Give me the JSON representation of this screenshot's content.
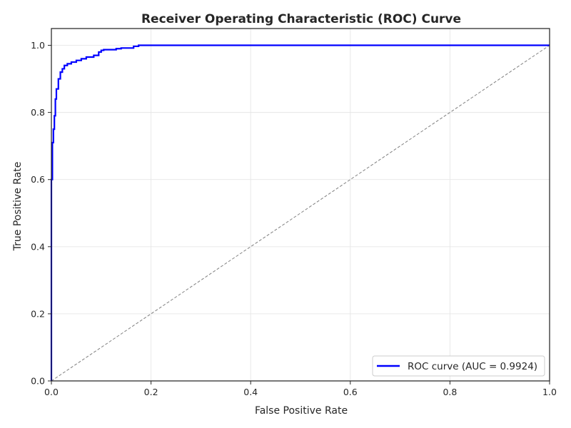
{
  "chart_data": {
    "type": "line",
    "title": "Receiver Operating Characteristic (ROC) Curve",
    "xlabel": "False Positive Rate",
    "ylabel": "True Positive Rate",
    "xlim": [
      0,
      1
    ],
    "ylim": [
      0,
      1.05
    ],
    "x_ticks": [
      0,
      0.2,
      0.4,
      0.6,
      0.8,
      1
    ],
    "x_tick_labels": [
      "0.0",
      "0.2",
      "0.4",
      "0.6",
      "0.8",
      "1.0"
    ],
    "y_ticks": [
      0,
      0.2,
      0.4,
      0.6,
      0.8,
      1
    ],
    "y_tick_labels": [
      "0.0",
      "0.2",
      "0.4",
      "0.6",
      "0.8",
      "1.0"
    ],
    "grid": true,
    "legend_position": "lower-right",
    "series": [
      {
        "name": "ROC curve (AUC = 0.9924)",
        "color": "#0000ff",
        "style": "solid",
        "x": [
          0,
          0,
          0.002,
          0.002,
          0.004,
          0.004,
          0.006,
          0.006,
          0.008,
          0.008,
          0.01,
          0.01,
          0.014,
          0.014,
          0.018,
          0.018,
          0.022,
          0.022,
          0.026,
          0.026,
          0.032,
          0.032,
          0.04,
          0.04,
          0.05,
          0.05,
          0.06,
          0.06,
          0.07,
          0.07,
          0.085,
          0.085,
          0.095,
          0.095,
          0.1,
          0.1,
          0.105,
          0.105,
          0.13,
          0.13,
          0.14,
          0.14,
          0.165,
          0.165,
          0.175,
          0.175,
          1.0
        ],
        "y": [
          0,
          0.6,
          0.6,
          0.71,
          0.71,
          0.75,
          0.75,
          0.79,
          0.79,
          0.84,
          0.84,
          0.87,
          0.87,
          0.9,
          0.9,
          0.92,
          0.92,
          0.93,
          0.93,
          0.94,
          0.94,
          0.945,
          0.945,
          0.95,
          0.95,
          0.955,
          0.955,
          0.96,
          0.96,
          0.965,
          0.965,
          0.97,
          0.97,
          0.98,
          0.98,
          0.985,
          0.985,
          0.987,
          0.987,
          0.99,
          0.99,
          0.992,
          0.992,
          0.997,
          0.997,
          1.0,
          1.0
        ]
      },
      {
        "name": "",
        "color": "#808080",
        "style": "dashed",
        "x": [
          0,
          1
        ],
        "y": [
          0,
          1
        ]
      }
    ]
  }
}
